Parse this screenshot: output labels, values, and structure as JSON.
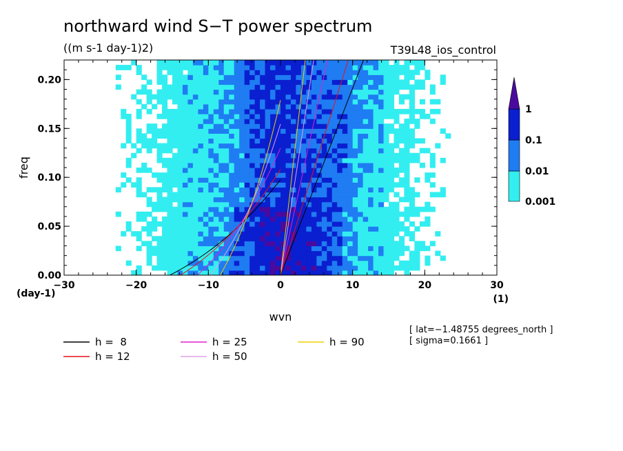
{
  "chart_data": {
    "type": "heatmap",
    "title": "northward wind S−T power spectrum",
    "units": "((m s-1 day-1)2)",
    "run_name": "T39L48_ios_control",
    "xlabel": "wvn",
    "ylabel": "freq",
    "x_unit": "(1)",
    "y_unit": "(day-1)",
    "xlim": [
      -30,
      30
    ],
    "ylim": [
      0,
      0.22
    ],
    "x_ticks": [
      -30,
      -20,
      -10,
      0,
      10,
      20,
      30
    ],
    "x_tick_labels": [
      "−30",
      "−20",
      "−10",
      "0",
      "10",
      "20",
      "30"
    ],
    "y_ticks": [
      0,
      0.05,
      0.1,
      0.15,
      0.2
    ],
    "y_tick_labels": [
      "0.00",
      "0.05",
      "0.10",
      "0.15",
      "0.20"
    ],
    "colorbar": {
      "levels": [
        0.001,
        0.01,
        0.1,
        1
      ],
      "level_labels": [
        "0.001",
        "0.01",
        "0.1",
        "1"
      ],
      "colors": [
        "#33eef0",
        "#1f7cf2",
        "#0a1fd0",
        "#4b0a9e"
      ]
    },
    "dispersion_curves": [
      {
        "label": "h =  8",
        "h": 8,
        "color": "#000000"
      },
      {
        "label": "h = 12",
        "h": 12,
        "color": "#e8101a"
      },
      {
        "label": "h = 25",
        "h": 25,
        "color": "#e020d0"
      },
      {
        "label": "h = 50",
        "h": 50,
        "color": "#e0a0e8"
      },
      {
        "label": "h = 90",
        "h": 90,
        "color": "#f0d000"
      }
    ],
    "annotations": [
      "[ lat=−1.48755 degrees_north ]",
      "[ sigma=0.1661 ]"
    ]
  }
}
